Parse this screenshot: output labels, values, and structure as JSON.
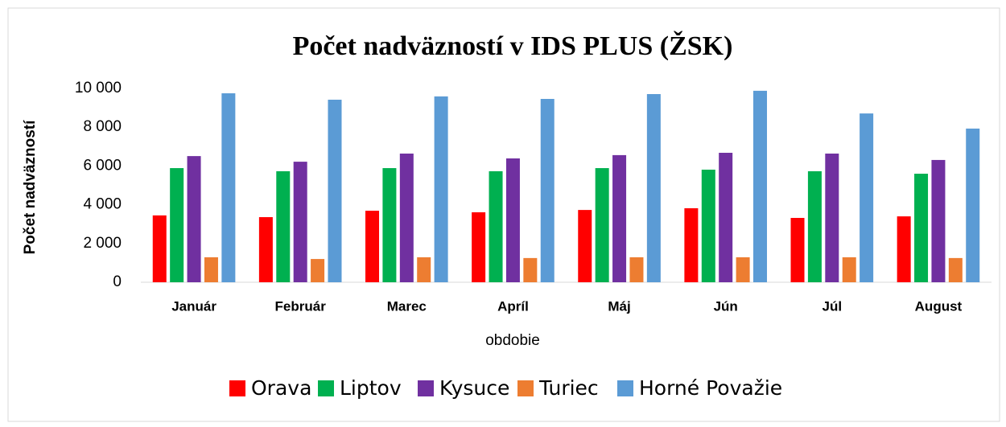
{
  "chart_data": {
    "type": "bar",
    "title": "Počet nadväzností v IDS PLUS (ŽSK)",
    "x_label": "obdobie",
    "y_label": "Počet nadväzností",
    "categories": [
      "Január",
      "Február",
      "Marec",
      "Apríl",
      "Máj",
      "Jún",
      "Júl",
      "August"
    ],
    "series": [
      {
        "name": "Orava",
        "color": "#ff0000",
        "values": [
          3450,
          3360,
          3690,
          3610,
          3730,
          3820,
          3320,
          3400
        ]
      },
      {
        "name": "Liptov",
        "color": "#00b050",
        "values": [
          5890,
          5730,
          5890,
          5730,
          5890,
          5810,
          5730,
          5600
        ]
      },
      {
        "name": "Kysuce",
        "color": "#7030a0",
        "values": [
          6510,
          6220,
          6640,
          6390,
          6560,
          6680,
          6640,
          6310
        ]
      },
      {
        "name": "Turiec",
        "color": "#ed7d31",
        "values": [
          1290,
          1200,
          1290,
          1250,
          1290,
          1290,
          1290,
          1250
        ]
      },
      {
        "name": "Horné Považie",
        "color": "#5b9bd5",
        "values": [
          9750,
          9420,
          9590,
          9460,
          9710,
          9880,
          8710,
          7930
        ]
      }
    ],
    "ylim": [
      0,
      10000
    ],
    "yticks": [
      0,
      {
        "value": 2000,
        "label": "2 000"
      },
      {
        "value": 4000,
        "label": "4 000"
      },
      {
        "value": 6000,
        "label": "6 000"
      },
      {
        "value": 8000,
        "label": "8 000"
      },
      {
        "value": 10000,
        "label": "10 000"
      }
    ],
    "grid": false,
    "legend": "bottom"
  }
}
